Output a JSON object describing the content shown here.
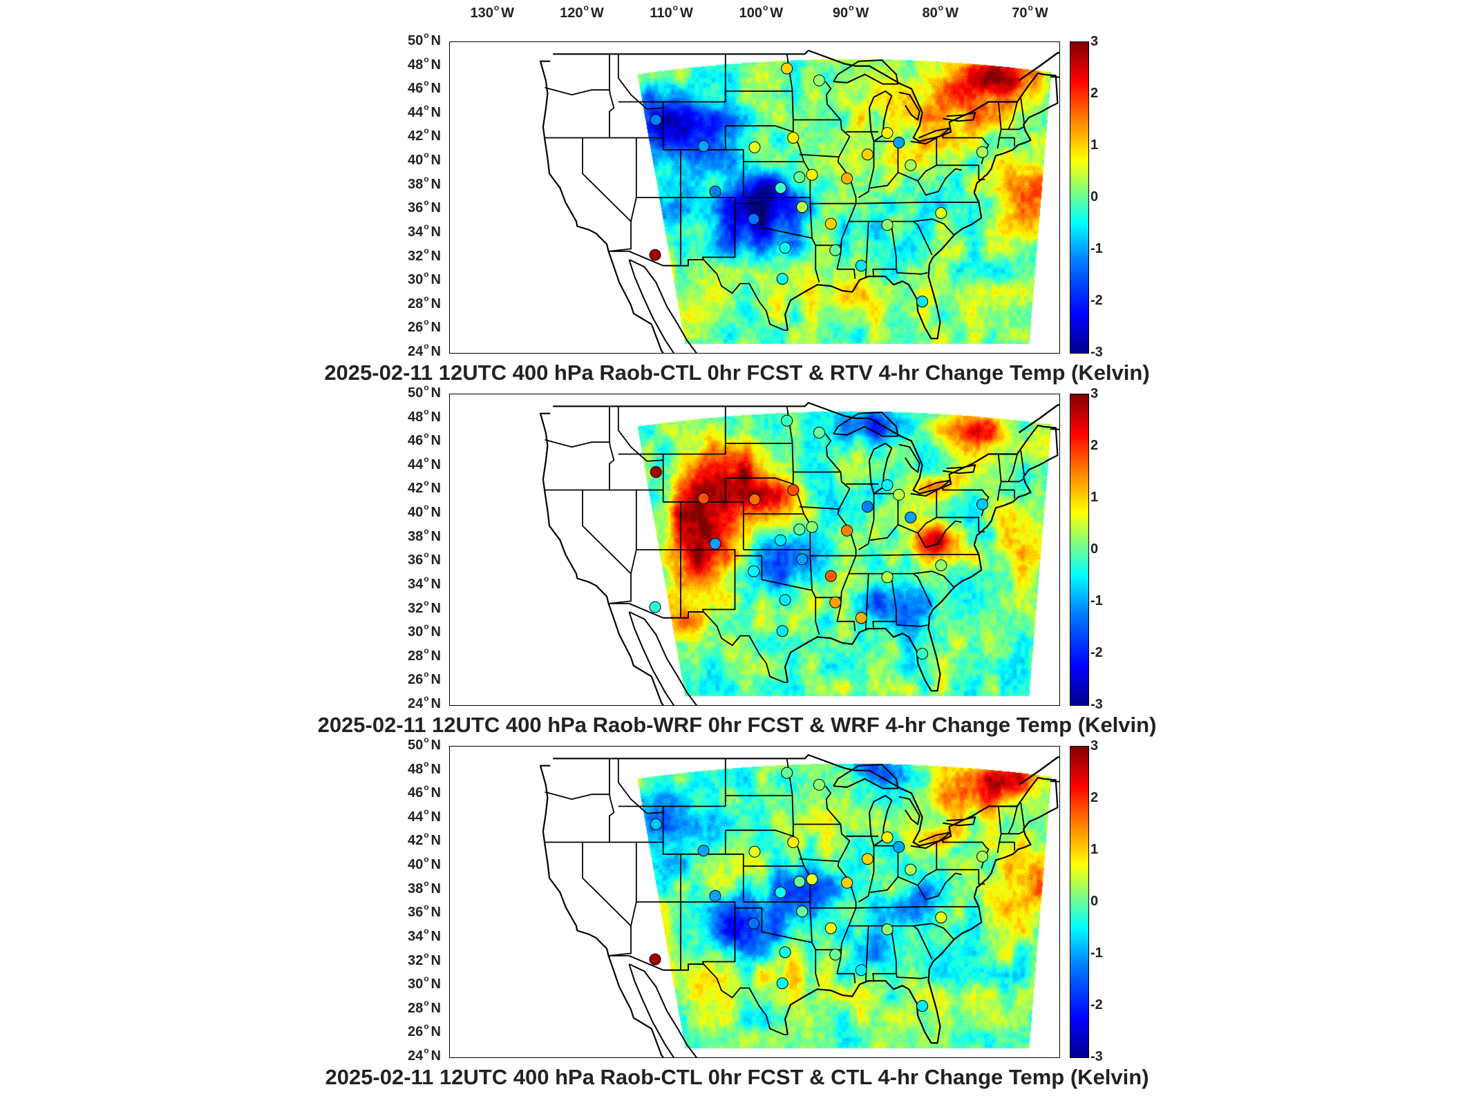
{
  "lon_labels": [
    "130",
    "120",
    "110",
    "100",
    "90",
    "80",
    "70"
  ],
  "lon_hemi": "W",
  "lat_labels": [
    "50",
    "48",
    "46",
    "44",
    "42",
    "40",
    "38",
    "36",
    "34",
    "32",
    "30",
    "28",
    "26",
    "24"
  ],
  "lat_hemi": "N",
  "colorbar_ticks": [
    "3",
    "2",
    "1",
    "0",
    "-1",
    "-2",
    "-3"
  ],
  "colormap": [
    "#00008f",
    "#0000ff",
    "#0080ff",
    "#00ffff",
    "#80ff80",
    "#ffff00",
    "#ff8000",
    "#ff0000",
    "#800000"
  ],
  "panels": [
    {
      "title": "2025-02-11 12UTC 400 hPa Raob-CTL 0hr FCST & RTV 4-hr Change Temp (Kelvin)",
      "field": "rtv",
      "station_values": [
        1.0,
        0.2,
        -1.2,
        -1.0,
        0.6,
        0.8,
        -0.2,
        0.0,
        0.8,
        1.2,
        -1.3,
        0.4,
        -0.5,
        1.0,
        -0.6,
        0.0,
        0.3,
        0.8,
        1.0,
        -1.0,
        0.2,
        0.6,
        2.8,
        -0.6,
        -1.2,
        0.3,
        -0.5
      ]
    },
    {
      "title": "2025-02-11 12UTC 400 hPa Raob-WRF 0hr FCST & WRF 4-hr Change Temp (Kelvin)",
      "field": "wrf",
      "station_values": [
        -0.2,
        0.0,
        2.8,
        1.8,
        1.6,
        1.8,
        -0.6,
        0.0,
        0.2,
        1.5,
        -0.5,
        -1.0,
        -0.6,
        1.7,
        1.2,
        1.3,
        -1.0,
        -0.5,
        -1.2,
        0.4,
        0.4,
        0.2,
        -0.3,
        -0.2,
        -1.0,
        -0.8,
        -0.6
      ]
    },
    {
      "title": "2025-02-11 12UTC 400 hPa Raob-CTL 0hr FCST & CTL 4-hr Change Temp (Kelvin)",
      "field": "ctl",
      "station_values": [
        0.0,
        0.2,
        -0.8,
        -1.0,
        0.6,
        0.8,
        -0.4,
        0.0,
        0.6,
        1.0,
        -1.3,
        0.0,
        -0.4,
        0.8,
        -0.6,
        0.0,
        0.3,
        0.8,
        1.0,
        -1.0,
        0.2,
        0.6,
        2.8,
        -0.6,
        -1.0,
        0.3,
        -0.5
      ]
    }
  ]
}
